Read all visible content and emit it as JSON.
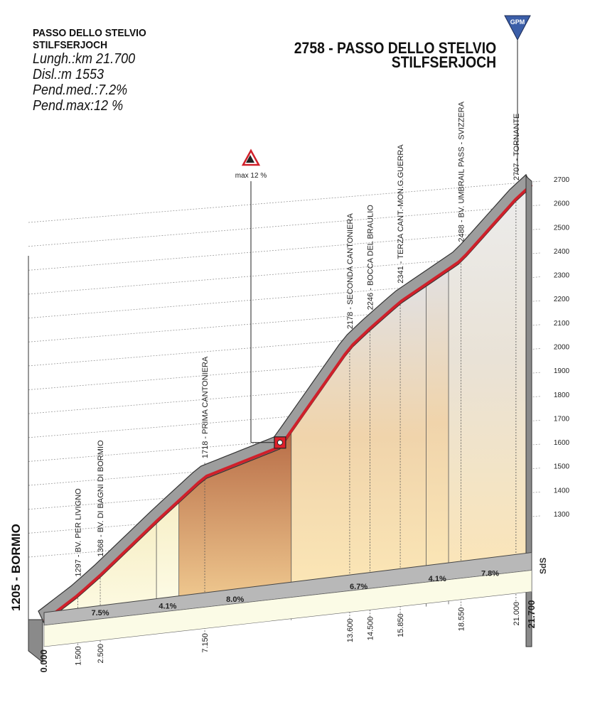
{
  "info": {
    "title_line1": "PASSO DELLO STELVIO",
    "title_line2": "STILFSERJOCH",
    "length": "Lunghezza: km 21.700",
    "length_label": "Lungh.:",
    "length_value": "km 21.700",
    "climb_label": "Disl.:",
    "climb_value": "m 1553",
    "avg_label": "Pend.med.:",
    "avg_value": "7.2%",
    "max_label": "Pend.max:",
    "max_value": "12 %"
  },
  "summit": {
    "line1": "2758 - PASSO DELLO STELVIO",
    "line2": "STILFSERJOCH",
    "badge": "GPM"
  },
  "start_label": "1205 - BORMIO",
  "max_marker_label": "max 12 %",
  "sds_label": "SdS",
  "chart_data": {
    "type": "area",
    "x_unit": "km",
    "y_unit": "m",
    "xlim": [
      0,
      21.7
    ],
    "ylim": [
      1205,
      2758
    ],
    "y_ticks": [
      1300,
      1400,
      1500,
      1600,
      1700,
      1800,
      1900,
      2000,
      2100,
      2200,
      2300,
      2400,
      2500,
      2600,
      2700
    ],
    "y_tick_labels": [
      "1300",
      "1400",
      "1500",
      "1600",
      "1700",
      "1800",
      "1900",
      "2000",
      "2100",
      "2200",
      "2300",
      "2400",
      "2500",
      "2600",
      "2700"
    ],
    "profile": [
      {
        "km": 0.0,
        "alt": 1205
      },
      {
        "km": 1.5,
        "alt": 1297
      },
      {
        "km": 2.5,
        "alt": 1368
      },
      {
        "km": 5.0,
        "alt": 1560
      },
      {
        "km": 7.15,
        "alt": 1718
      },
      {
        "km": 10.5,
        "alt": 1825
      },
      {
        "km": 13.6,
        "alt": 2178
      },
      {
        "km": 14.5,
        "alt": 2246
      },
      {
        "km": 15.85,
        "alt": 2341
      },
      {
        "km": 18.55,
        "alt": 2488
      },
      {
        "km": 21.0,
        "alt": 2707
      },
      {
        "km": 21.7,
        "alt": 2758
      }
    ],
    "km_labels": [
      {
        "km": 0.0,
        "label": "0.000"
      },
      {
        "km": 1.5,
        "label": "1.500"
      },
      {
        "km": 2.5,
        "label": "2.500"
      },
      {
        "km": 7.15,
        "label": "7.150"
      },
      {
        "km": 13.6,
        "label": "13.600"
      },
      {
        "km": 14.5,
        "label": "14.500"
      },
      {
        "km": 15.85,
        "label": "15.850"
      },
      {
        "km": 18.55,
        "label": "18.550"
      },
      {
        "km": 21.0,
        "label": "21.000"
      },
      {
        "km": 21.7,
        "label": "21.700"
      }
    ],
    "waypoints": [
      {
        "km": 1.5,
        "label": "1297 - BV. PER LIVIGNO"
      },
      {
        "km": 2.5,
        "label": "1368 - BV. DI BAGNI DI BORMIO"
      },
      {
        "km": 7.15,
        "label": "1718 - PRIMA CANTONIERA"
      },
      {
        "km": 13.6,
        "label": "2178 - SECONDA CANTONIERA"
      },
      {
        "km": 14.5,
        "label": "2246 - BOCCA DEL BRAULIO"
      },
      {
        "km": 15.85,
        "label": "2341 - TERZA CANT.-MON.G.GUERRA"
      },
      {
        "km": 18.55,
        "label": "2488 - BV. UMBRAIL PASS - SVIZZERA"
      },
      {
        "km": 21.0,
        "label": "2707 - TORNANTE"
      }
    ],
    "segments": [
      {
        "from": 0.0,
        "to": 5.0,
        "gradient": "7.5%",
        "color": "#fbf6d0"
      },
      {
        "from": 5.0,
        "to": 6.0,
        "gradient": "4.1%",
        "color": "#fcf4d2"
      },
      {
        "from": 6.0,
        "to": 11.0,
        "gradient": "8.0%",
        "color": "#c98a5e"
      },
      {
        "from": 11.0,
        "to": 17.0,
        "gradient": "6.7%",
        "color": "#f4d2a2"
      },
      {
        "from": 17.0,
        "to": 18.0,
        "gradient": "4.1%",
        "color": "#f2cfa0"
      },
      {
        "from": 18.0,
        "to": 21.7,
        "gradient": "7.8%",
        "color": "#eee6dc"
      }
    ],
    "max_gradient_km": 10.5
  }
}
